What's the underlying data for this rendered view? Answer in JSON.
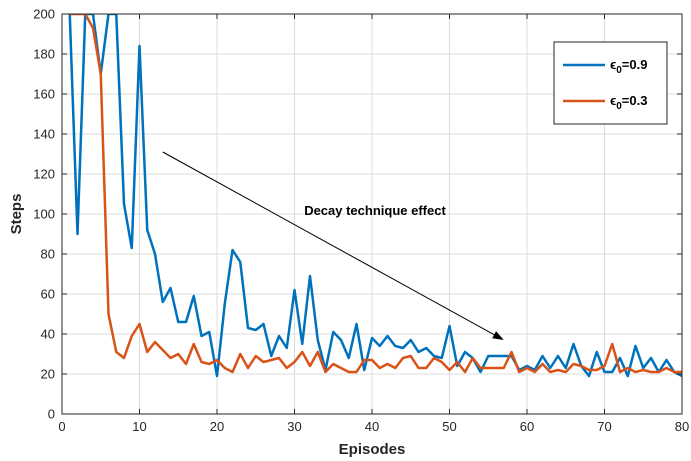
{
  "chart_data": {
    "type": "line",
    "title": "",
    "xlabel": "Episodes",
    "ylabel": "Steps",
    "xlim": [
      0,
      80
    ],
    "ylim": [
      0,
      200
    ],
    "xticks": [
      0,
      10,
      20,
      30,
      40,
      50,
      60,
      70,
      80
    ],
    "yticks": [
      0,
      20,
      40,
      60,
      80,
      100,
      120,
      140,
      160,
      180,
      200
    ],
    "grid": true,
    "legend_position": "top-right",
    "annotation": {
      "text": "Decay technique effect",
      "arrow_from": [
        13,
        131
      ],
      "arrow_to": [
        57,
        37
      ]
    },
    "series": [
      {
        "name": "ε0=0.9",
        "label_main": "ϵ",
        "label_sub": "0",
        "label_rest": "=0.9",
        "color": "#0072BD",
        "x": [
          1,
          2,
          3,
          4,
          5,
          6,
          7,
          8,
          9,
          10,
          11,
          12,
          13,
          14,
          15,
          16,
          17,
          18,
          19,
          20,
          21,
          22,
          23,
          24,
          25,
          26,
          27,
          28,
          29,
          30,
          31,
          32,
          33,
          34,
          35,
          36,
          37,
          38,
          39,
          40,
          41,
          42,
          43,
          44,
          45,
          46,
          47,
          48,
          49,
          50,
          51,
          52,
          53,
          54,
          55,
          56,
          57,
          58,
          59,
          60,
          61,
          62,
          63,
          64,
          65,
          66,
          67,
          68,
          69,
          70,
          71,
          72,
          73,
          74,
          75,
          76,
          77,
          78,
          79,
          80
        ],
        "y": [
          200,
          90,
          200,
          200,
          170,
          200,
          200,
          105,
          83,
          184,
          92,
          80,
          56,
          63,
          46,
          46,
          59,
          39,
          41,
          19,
          55,
          82,
          76,
          43,
          42,
          45,
          29,
          39,
          33,
          62,
          35,
          69,
          37,
          22,
          41,
          37,
          28,
          45,
          22,
          38,
          34,
          39,
          34,
          33,
          37,
          31,
          33,
          29,
          28,
          44,
          24,
          31,
          28,
          21,
          29,
          29,
          29,
          29,
          22,
          24,
          22,
          29,
          23,
          29,
          23,
          35,
          24,
          19,
          31,
          21,
          21,
          28,
          19,
          34,
          23,
          28,
          21,
          27,
          21,
          19
        ]
      },
      {
        "name": "ε0=0.3",
        "label_main": "ϵ",
        "label_sub": "0",
        "label_rest": "=0.3",
        "color": "#D95319",
        "x": [
          1,
          2,
          3,
          4,
          5,
          6,
          7,
          8,
          9,
          10,
          11,
          12,
          13,
          14,
          15,
          16,
          17,
          18,
          19,
          20,
          21,
          22,
          23,
          24,
          25,
          26,
          27,
          28,
          29,
          30,
          31,
          32,
          33,
          34,
          35,
          36,
          37,
          38,
          39,
          40,
          41,
          42,
          43,
          44,
          45,
          46,
          47,
          48,
          49,
          50,
          51,
          52,
          53,
          54,
          55,
          56,
          57,
          58,
          59,
          60,
          61,
          62,
          63,
          64,
          65,
          66,
          67,
          68,
          69,
          70,
          71,
          72,
          73,
          74,
          75,
          76,
          77,
          78,
          79,
          80
        ],
        "y": [
          200,
          200,
          200,
          193,
          170,
          50,
          31,
          28,
          39,
          45,
          31,
          36,
          32,
          28,
          30,
          25,
          35,
          26,
          25,
          27,
          23,
          21,
          30,
          23,
          29,
          26,
          27,
          28,
          23,
          26,
          31,
          24,
          31,
          21,
          25,
          23,
          21,
          21,
          27,
          27,
          23,
          25,
          23,
          28,
          29,
          23,
          23,
          28,
          26,
          22,
          26,
          21,
          28,
          23,
          23,
          23,
          23,
          31,
          21,
          23,
          21,
          25,
          21,
          22,
          21,
          25,
          24,
          22,
          22,
          24,
          35,
          21,
          23,
          21,
          22,
          21,
          21,
          23,
          21,
          21
        ]
      }
    ]
  }
}
